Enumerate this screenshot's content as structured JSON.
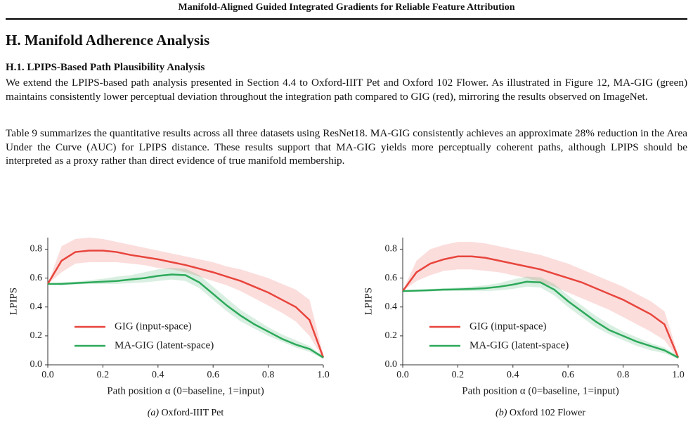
{
  "header": {
    "title": "Manifold-Aligned Guided Integrated Gradients for Reliable Feature Attribution"
  },
  "section": {
    "title": "H. Manifold Adherence Analysis",
    "subsection": "H.1. LPIPS-Based Path Plausibility Analysis",
    "paragraphs": [
      "We extend the LPIPS-based path analysis presented in Section 4.4 to Oxford-IIIT Pet and Oxford 102 Flower. As illustrated in Figure 12, MA-GIG (green) maintains consistently lower perceptual deviation throughout the integration path compared to GIG (red), mirroring the results observed on ImageNet.",
      "Table 9 summarizes the quantitative results across all three datasets using ResNet18. MA-GIG consistently achieves an approximate 28% reduction in the Area Under the Curve (AUC) for LPIPS distance. These results support that MA-GIG yields more perceptually coherent paths, although LPIPS should be interpreted as a proxy rather than direct evidence of true manifold membership."
    ]
  },
  "chart_data": [
    {
      "type": "line",
      "label": "(a)",
      "caption": "Oxford-IIIT Pet",
      "xlabel": "Path position α (0=baseline, 1=input)",
      "ylabel": "LPIPS",
      "xlim": [
        0,
        1
      ],
      "ylim": [
        0,
        0.88
      ],
      "legend": "lower left",
      "xticks": [
        {
          "value": 0,
          "label": "0.0"
        },
        {
          "value": 0.2,
          "label": "0.2"
        },
        {
          "value": 0.4,
          "label": "0.4"
        },
        {
          "value": 0.6,
          "label": "0.6"
        },
        {
          "value": 0.8,
          "label": "0.8"
        },
        {
          "value": 1,
          "label": "1.0"
        }
      ],
      "yticks": [
        {
          "value": 0,
          "label": "0.0"
        },
        0.2,
        0.4,
        0.6,
        0.8
      ],
      "x": [
        0,
        0.05,
        0.1,
        0.15,
        0.2,
        0.25,
        0.3,
        0.35,
        0.4,
        0.45,
        0.5,
        0.55,
        0.6,
        0.65,
        0.7,
        0.75,
        0.8,
        0.85,
        0.9,
        0.95,
        1
      ],
      "series": [
        {
          "name": "GIG (input-space)",
          "color": "#e8453c",
          "values": [
            0.56,
            0.72,
            0.78,
            0.79,
            0.79,
            0.78,
            0.76,
            0.745,
            0.73,
            0.71,
            0.69,
            0.665,
            0.64,
            0.61,
            0.58,
            0.54,
            0.5,
            0.45,
            0.4,
            0.31,
            0.05
          ],
          "upper": [
            0.56,
            0.82,
            0.87,
            0.88,
            0.87,
            0.85,
            0.83,
            0.81,
            0.79,
            0.77,
            0.75,
            0.73,
            0.71,
            0.68,
            0.66,
            0.63,
            0.6,
            0.56,
            0.52,
            0.45,
            0.07
          ],
          "lower": [
            0.56,
            0.64,
            0.7,
            0.71,
            0.71,
            0.71,
            0.7,
            0.69,
            0.67,
            0.66,
            0.64,
            0.61,
            0.58,
            0.55,
            0.51,
            0.46,
            0.41,
            0.36,
            0.3,
            0.2,
            0.04
          ]
        },
        {
          "name": "MA-GIG (latent-space)",
          "color": "#2ca95a",
          "values": [
            0.56,
            0.56,
            0.565,
            0.57,
            0.575,
            0.58,
            0.59,
            0.6,
            0.615,
            0.625,
            0.62,
            0.57,
            0.49,
            0.41,
            0.34,
            0.28,
            0.23,
            0.18,
            0.14,
            0.11,
            0.05
          ],
          "upper": [
            0.56,
            0.57,
            0.575,
            0.585,
            0.595,
            0.61,
            0.62,
            0.64,
            0.66,
            0.67,
            0.665,
            0.62,
            0.54,
            0.46,
            0.38,
            0.32,
            0.26,
            0.21,
            0.17,
            0.13,
            0.06
          ],
          "lower": [
            0.56,
            0.55,
            0.555,
            0.56,
            0.56,
            0.56,
            0.565,
            0.57,
            0.58,
            0.59,
            0.58,
            0.53,
            0.45,
            0.37,
            0.3,
            0.25,
            0.2,
            0.16,
            0.12,
            0.09,
            0.04
          ]
        }
      ]
    },
    {
      "type": "line",
      "label": "(b)",
      "caption": "Oxford 102 Flower",
      "xlabel": "Path position α (0=baseline, 1=input)",
      "ylabel": "LPIPS",
      "xlim": [
        0,
        1
      ],
      "ylim": [
        0,
        0.88
      ],
      "legend": "lower left",
      "xticks": [
        {
          "value": 0,
          "label": "0.0"
        },
        {
          "value": 0.2,
          "label": "0.2"
        },
        {
          "value": 0.4,
          "label": "0.4"
        },
        {
          "value": 0.6,
          "label": "0.6"
        },
        {
          "value": 0.8,
          "label": "0.8"
        },
        {
          "value": 1,
          "label": "1.0"
        }
      ],
      "yticks": [
        {
          "value": 0,
          "label": "0.0"
        },
        0.2,
        0.4,
        0.6,
        0.8
      ],
      "x": [
        0,
        0.05,
        0.1,
        0.15,
        0.2,
        0.25,
        0.3,
        0.35,
        0.4,
        0.45,
        0.5,
        0.55,
        0.6,
        0.65,
        0.7,
        0.75,
        0.8,
        0.85,
        0.9,
        0.95,
        1
      ],
      "series": [
        {
          "name": "GIG (input-space)",
          "color": "#e8453c",
          "values": [
            0.51,
            0.64,
            0.7,
            0.73,
            0.75,
            0.75,
            0.74,
            0.72,
            0.7,
            0.68,
            0.66,
            0.63,
            0.6,
            0.57,
            0.53,
            0.49,
            0.45,
            0.4,
            0.35,
            0.28,
            0.05
          ],
          "upper": [
            0.51,
            0.72,
            0.8,
            0.83,
            0.85,
            0.85,
            0.84,
            0.82,
            0.8,
            0.78,
            0.76,
            0.73,
            0.7,
            0.66,
            0.62,
            0.58,
            0.54,
            0.49,
            0.44,
            0.37,
            0.07
          ],
          "lower": [
            0.51,
            0.58,
            0.62,
            0.65,
            0.66,
            0.66,
            0.65,
            0.64,
            0.62,
            0.6,
            0.57,
            0.54,
            0.5,
            0.46,
            0.42,
            0.38,
            0.33,
            0.28,
            0.23,
            0.17,
            0.04
          ]
        },
        {
          "name": "MA-GIG (latent-space)",
          "color": "#2ca95a",
          "values": [
            0.51,
            0.513,
            0.516,
            0.52,
            0.522,
            0.525,
            0.53,
            0.54,
            0.555,
            0.575,
            0.57,
            0.52,
            0.44,
            0.37,
            0.3,
            0.24,
            0.2,
            0.16,
            0.13,
            0.1,
            0.05
          ],
          "upper": [
            0.51,
            0.52,
            0.525,
            0.53,
            0.535,
            0.54,
            0.55,
            0.565,
            0.59,
            0.61,
            0.605,
            0.56,
            0.48,
            0.41,
            0.34,
            0.28,
            0.23,
            0.19,
            0.15,
            0.12,
            0.06
          ],
          "lower": [
            0.51,
            0.505,
            0.507,
            0.51,
            0.51,
            0.51,
            0.51,
            0.515,
            0.525,
            0.54,
            0.535,
            0.48,
            0.4,
            0.33,
            0.26,
            0.21,
            0.17,
            0.13,
            0.1,
            0.08,
            0.04
          ]
        }
      ]
    }
  ]
}
